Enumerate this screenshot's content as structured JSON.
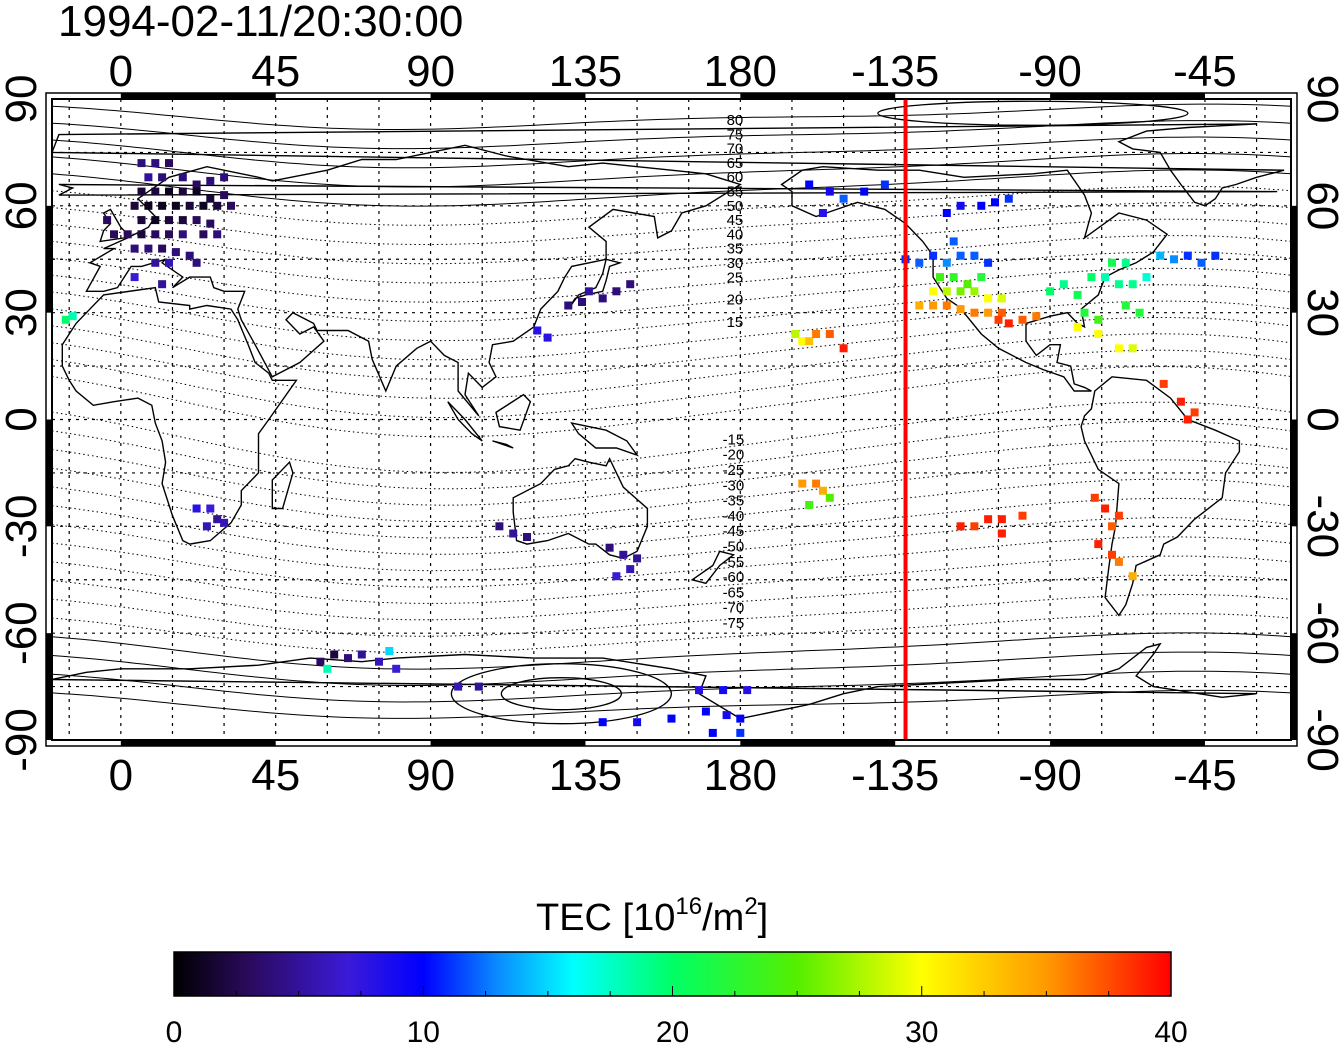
{
  "timestamp": "1994-02-11/20:30:00",
  "colorbar": {
    "title_main": "TEC  [10",
    "title_sup1": "16",
    "title_mid": "/m",
    "title_sup2": "2",
    "title_end": "]",
    "min": 0,
    "max": 40,
    "ticks": [
      "0",
      "10",
      "20",
      "30",
      "40"
    ],
    "stops": [
      {
        "v": 0,
        "color": "#000000"
      },
      {
        "v": 3,
        "color": "#2a0a5c"
      },
      {
        "v": 7,
        "color": "#3b1ad8"
      },
      {
        "v": 10,
        "color": "#0000ff"
      },
      {
        "v": 13,
        "color": "#0a8cff"
      },
      {
        "v": 16,
        "color": "#00ffff"
      },
      {
        "v": 20,
        "color": "#00ff66"
      },
      {
        "v": 25,
        "color": "#55ee00"
      },
      {
        "v": 30,
        "color": "#ffff00"
      },
      {
        "v": 35,
        "color": "#ff9900"
      },
      {
        "v": 40,
        "color": "#ff0000"
      }
    ]
  },
  "map": {
    "lon_tick_labels": [
      "0",
      "45",
      "90",
      "135",
      "180",
      "-135",
      "-90",
      "-45"
    ],
    "lon_tick_values": [
      0,
      45,
      90,
      135,
      180,
      225,
      270,
      315
    ],
    "lat_tick_labels": [
      "90",
      "60",
      "30",
      "0",
      "-30",
      "-60",
      "-90"
    ],
    "lat_tick_values": [
      90,
      60,
      30,
      0,
      -30,
      -60,
      -90
    ],
    "lon_range": [
      -20,
      340
    ],
    "lat_range": [
      -90,
      90
    ],
    "grid_lon_step": 15,
    "grid_lat_step": 15,
    "terminator_lon": 228,
    "terminator_color": "#ff0000",
    "magnetic_lat_labels_north": [
      "80",
      "75",
      "70",
      "65",
      "60",
      "55",
      "50",
      "45",
      "40",
      "35",
      "30",
      "25",
      "20",
      "15"
    ],
    "magnetic_lat_labels_south": [
      "-15",
      "-20",
      "-25",
      "-30",
      "-35",
      "-40",
      "-45",
      "-50",
      "-55",
      "-60",
      "-65",
      "-70",
      "-75"
    ]
  },
  "tec_points": [
    [
      6,
      72,
      4
    ],
    [
      10,
      72,
      4
    ],
    [
      14,
      72,
      3
    ],
    [
      8,
      68,
      5
    ],
    [
      12,
      68,
      4
    ],
    [
      18,
      68,
      4
    ],
    [
      22,
      66,
      3
    ],
    [
      26,
      67,
      4
    ],
    [
      30,
      68,
      4
    ],
    [
      6,
      64,
      2
    ],
    [
      10,
      64,
      2
    ],
    [
      14,
      64,
      1
    ],
    [
      18,
      64,
      2
    ],
    [
      22,
      64,
      1
    ],
    [
      26,
      62,
      2
    ],
    [
      30,
      63,
      3
    ],
    [
      4,
      60,
      2
    ],
    [
      8,
      60,
      1
    ],
    [
      12,
      60,
      1
    ],
    [
      16,
      60,
      1
    ],
    [
      20,
      60,
      2
    ],
    [
      24,
      60,
      1
    ],
    [
      28,
      60,
      2
    ],
    [
      32,
      60,
      3
    ],
    [
      6,
      56,
      2
    ],
    [
      10,
      56,
      1
    ],
    [
      14,
      56,
      2
    ],
    [
      18,
      56,
      2
    ],
    [
      22,
      56,
      3
    ],
    [
      26,
      55,
      3
    ],
    [
      -4,
      56,
      3
    ],
    [
      -2,
      52,
      3
    ],
    [
      2,
      52,
      3
    ],
    [
      6,
      52,
      2
    ],
    [
      10,
      52,
      3
    ],
    [
      14,
      52,
      3
    ],
    [
      18,
      52,
      4
    ],
    [
      24,
      52,
      3
    ],
    [
      28,
      52,
      4
    ],
    [
      4,
      48,
      4
    ],
    [
      8,
      48,
      4
    ],
    [
      12,
      48,
      3
    ],
    [
      16,
      47,
      4
    ],
    [
      20,
      46,
      4
    ],
    [
      10,
      44,
      5
    ],
    [
      14,
      44,
      6
    ],
    [
      22,
      44,
      4
    ],
    [
      4,
      40,
      7
    ],
    [
      12,
      38,
      5
    ],
    [
      -16,
      28,
      20
    ],
    [
      -14,
      29,
      18
    ],
    [
      22,
      -25,
      8
    ],
    [
      26,
      -25,
      7
    ],
    [
      28,
      -28,
      5
    ],
    [
      25,
      -30,
      6
    ],
    [
      30,
      -29,
      6
    ],
    [
      110,
      -30,
      4
    ],
    [
      114,
      -32,
      5
    ],
    [
      118,
      -33,
      4
    ],
    [
      142,
      -36,
      4
    ],
    [
      146,
      -38,
      5
    ],
    [
      150,
      -39,
      5
    ],
    [
      148,
      -42,
      6
    ],
    [
      144,
      -44,
      7
    ],
    [
      140,
      34,
      4
    ],
    [
      144,
      36,
      4
    ],
    [
      148,
      38,
      4
    ],
    [
      136,
      36,
      5
    ],
    [
      134,
      33,
      4
    ],
    [
      130,
      32,
      4
    ],
    [
      121,
      25,
      8
    ],
    [
      124,
      23,
      8
    ],
    [
      58,
      -68,
      3
    ],
    [
      62,
      -66,
      2
    ],
    [
      66,
      -67,
      4
    ],
    [
      70,
      -66,
      5
    ],
    [
      75,
      -68,
      6
    ],
    [
      80,
      -70,
      7
    ],
    [
      60,
      -70,
      18
    ],
    [
      78,
      -65,
      15
    ],
    [
      98,
      -75,
      6
    ],
    [
      104,
      -75,
      5
    ],
    [
      140,
      -85,
      10
    ],
    [
      150,
      -85,
      9
    ],
    [
      160,
      -84,
      10
    ],
    [
      170,
      -82,
      10
    ],
    [
      176,
      -83,
      9
    ],
    [
      180,
      -84,
      10
    ],
    [
      168,
      -76,
      8
    ],
    [
      175,
      -76,
      9
    ],
    [
      182,
      -76,
      8
    ],
    [
      172,
      -88,
      10
    ],
    [
      180,
      -88,
      11
    ],
    [
      210,
      62,
      12
    ],
    [
      216,
      64,
      10
    ],
    [
      222,
      66,
      11
    ],
    [
      206,
      64,
      9
    ],
    [
      200,
      66,
      10
    ],
    [
      204,
      58,
      8
    ],
    [
      198,
      -18,
      35
    ],
    [
      202,
      -18,
      36
    ],
    [
      204,
      -20,
      34
    ],
    [
      206,
      -22,
      25
    ],
    [
      200,
      -24,
      24
    ],
    [
      196,
      24,
      28
    ],
    [
      198,
      22,
      30
    ],
    [
      200,
      22,
      33
    ],
    [
      202,
      24,
      36
    ],
    [
      206,
      24,
      37
    ],
    [
      210,
      20,
      39
    ],
    [
      228,
      45,
      11
    ],
    [
      232,
      44,
      12
    ],
    [
      236,
      46,
      11
    ],
    [
      240,
      44,
      13
    ],
    [
      244,
      46,
      12
    ],
    [
      248,
      46,
      12
    ],
    [
      252,
      44,
      11
    ],
    [
      242,
      50,
      12
    ],
    [
      232,
      32,
      34
    ],
    [
      236,
      32,
      35
    ],
    [
      240,
      32,
      36
    ],
    [
      244,
      31,
      35
    ],
    [
      248,
      30,
      36
    ],
    [
      252,
      30,
      35
    ],
    [
      256,
      30,
      37
    ],
    [
      236,
      36,
      30
    ],
    [
      240,
      36,
      28
    ],
    [
      244,
      36,
      26
    ],
    [
      248,
      36,
      27
    ],
    [
      252,
      34,
      30
    ],
    [
      256,
      34,
      29
    ],
    [
      238,
      40,
      24
    ],
    [
      242,
      40,
      23
    ],
    [
      246,
      38,
      25
    ],
    [
      250,
      40,
      22
    ],
    [
      255,
      28,
      38
    ],
    [
      258,
      27,
      39
    ],
    [
      262,
      28,
      37
    ],
    [
      266,
      29,
      36
    ],
    [
      244,
      60,
      9
    ],
    [
      250,
      60,
      10
    ],
    [
      254,
      61,
      10
    ],
    [
      258,
      62,
      11
    ],
    [
      240,
      58,
      10
    ],
    [
      270,
      36,
      20
    ],
    [
      274,
      38,
      19
    ],
    [
      278,
      35,
      21
    ],
    [
      282,
      40,
      20
    ],
    [
      286,
      40,
      18
    ],
    [
      290,
      38,
      19
    ],
    [
      294,
      38,
      19
    ],
    [
      298,
      40,
      17
    ],
    [
      288,
      44,
      21
    ],
    [
      292,
      44,
      19
    ],
    [
      302,
      46,
      14
    ],
    [
      306,
      45,
      13
    ],
    [
      310,
      46,
      11
    ],
    [
      314,
      44,
      12
    ],
    [
      318,
      46,
      11
    ],
    [
      280,
      30,
      22
    ],
    [
      284,
      28,
      24
    ],
    [
      292,
      32,
      22
    ],
    [
      296,
      30,
      22
    ],
    [
      278,
      26,
      30
    ],
    [
      284,
      24,
      30
    ],
    [
      290,
      20,
      30
    ],
    [
      294,
      20,
      29
    ],
    [
      303,
      10,
      38
    ],
    [
      308,
      5,
      39
    ],
    [
      312,
      2,
      38
    ],
    [
      310,
      0,
      39
    ],
    [
      283,
      -22,
      38
    ],
    [
      286,
      -25,
      39
    ],
    [
      290,
      -27,
      38
    ],
    [
      288,
      -30,
      37
    ],
    [
      284,
      -35,
      39
    ],
    [
      288,
      -38,
      38
    ],
    [
      290,
      -40,
      36
    ],
    [
      294,
      -44,
      34
    ],
    [
      244,
      -30,
      39
    ],
    [
      248,
      -30,
      38
    ],
    [
      252,
      -28,
      39
    ],
    [
      256,
      -28,
      39
    ],
    [
      262,
      -27,
      38
    ],
    [
      256,
      -32,
      39
    ]
  ]
}
